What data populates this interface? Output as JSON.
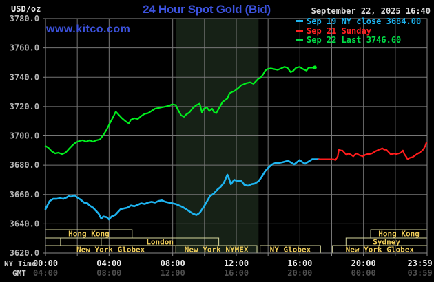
{
  "header": {
    "units_label": "USD/oz",
    "title": "24 Hour Spot Gold (Bid)",
    "datetime": "September 22, 2025 16:40",
    "watermark": "www.kitco.com",
    "legend": [
      {
        "label": "Sep 19 NY close 3684.00",
        "color": "#1eb4f0"
      },
      {
        "label": "Sep 21 Sunday",
        "color": "#ff2222"
      },
      {
        "label": "Sep 22 Last 3746.60",
        "color": "#00dc46"
      }
    ]
  },
  "axes": {
    "ny_time_label": "NY Time",
    "gmt_label": "GMT",
    "y_ticks": [
      {
        "v": 3780,
        "label": "3780.0"
      },
      {
        "v": 3760,
        "label": "3760.0"
      },
      {
        "v": 3740,
        "label": "3740.0"
      },
      {
        "v": 3720,
        "label": "3720.0"
      },
      {
        "v": 3700,
        "label": "3700.0"
      },
      {
        "v": 3680,
        "label": "3680.0"
      },
      {
        "v": 3660,
        "label": "3660.0"
      },
      {
        "v": 3640,
        "label": "3640.0"
      },
      {
        "v": 3620,
        "label": "3620.0"
      }
    ],
    "x_ticks": [
      {
        "h": 0,
        "ny": "00:00",
        "gmt": "04:00"
      },
      {
        "h": 4,
        "ny": "04:00",
        "gmt": "08:00"
      },
      {
        "h": 8,
        "ny": "08:00",
        "gmt": "12:00"
      },
      {
        "h": 12,
        "ny": "12:00",
        "gmt": "16:00"
      },
      {
        "h": 16,
        "ny": "16:00",
        "gmt": "20:00"
      },
      {
        "h": 20,
        "ny": "20:00",
        "gmt": "00:00"
      },
      {
        "h": 23.55,
        "ny": "23:59",
        "gmt": "03:59"
      }
    ]
  },
  "sessions": {
    "rows": [
      {
        "boxes": [
          {
            "start": 0,
            "end": 5.45,
            "label": "Hong Kong"
          },
          {
            "start": 20.45,
            "end": 24,
            "label": "Hong Kong"
          }
        ]
      },
      {
        "boxes": [
          {
            "start": 0,
            "end": 0.95,
            "label": ""
          },
          {
            "start": 0.95,
            "end": 3.5,
            "label": ""
          },
          {
            "start": 3.5,
            "end": 10.9,
            "label": "London"
          },
          {
            "start": 18.9,
            "end": 24,
            "label": "Sydney"
          }
        ]
      },
      {
        "boxes": [
          {
            "start": 0,
            "end": 8.2,
            "label": "New York Globex"
          },
          {
            "start": 8.2,
            "end": 13.3,
            "label": "New York NYMEX"
          },
          {
            "start": 13.5,
            "end": 17.3,
            "label": "NY Globex"
          },
          {
            "start": 18.05,
            "end": 24,
            "label": "New York Globex"
          }
        ]
      }
    ]
  },
  "colors": {
    "grid": "#767676",
    "border": "#8a8a8a",
    "band": "#162116",
    "session_border": "#d6d69c",
    "session_text": "#efcd5a",
    "y_label_text": "#b6b6b6",
    "ny_time_text": "#ededed",
    "gmt_text": "#4e4e4e"
  },
  "chart_data": {
    "type": "line",
    "title": "24 Hour Spot Gold (Bid)",
    "xlabel": "NY Time (hours 00:00 - 23:59)",
    "ylabel": "USD/oz",
    "xlim": [
      0,
      24
    ],
    "ylim": [
      3620,
      3780
    ],
    "grid": true,
    "legend_position": "top-right",
    "x_gridline_hours": [
      0,
      2,
      4,
      6,
      8,
      10,
      12,
      14,
      16,
      18,
      20,
      22,
      24
    ],
    "y_gridline_values": [
      3620,
      3640,
      3660,
      3680,
      3700,
      3720,
      3740,
      3760,
      3780
    ],
    "highlight_band_hours": [
      8.2,
      13.4
    ],
    "series": [
      {
        "name": "Sep 19 NY close 3684.00",
        "color": "#1eb4f0",
        "width": 2.6,
        "end_dot": false,
        "points": [
          [
            0,
            3650
          ],
          [
            0.26,
            3655.5
          ],
          [
            0.48,
            3657
          ],
          [
            0.69,
            3657
          ],
          [
            0.91,
            3657.5
          ],
          [
            1.13,
            3657
          ],
          [
            1.34,
            3658
          ],
          [
            1.47,
            3659
          ],
          [
            1.6,
            3658.5
          ],
          [
            1.82,
            3659.5
          ],
          [
            1.99,
            3658
          ],
          [
            2.21,
            3656.5
          ],
          [
            2.43,
            3654.5
          ],
          [
            2.64,
            3654
          ],
          [
            2.77,
            3652.5
          ],
          [
            2.99,
            3651
          ],
          [
            3.21,
            3648.5
          ],
          [
            3.34,
            3647
          ],
          [
            3.51,
            3643.5
          ],
          [
            3.64,
            3645
          ],
          [
            3.86,
            3644.5
          ],
          [
            3.99,
            3643
          ],
          [
            4.16,
            3645
          ],
          [
            4.38,
            3646
          ],
          [
            4.51,
            3647.5
          ],
          [
            4.72,
            3650
          ],
          [
            4.94,
            3650.5
          ],
          [
            5.16,
            3651
          ],
          [
            5.37,
            3652.5
          ],
          [
            5.59,
            3652
          ],
          [
            5.81,
            3653
          ],
          [
            6.02,
            3654
          ],
          [
            6.24,
            3653.5
          ],
          [
            6.45,
            3654.5
          ],
          [
            6.67,
            3655
          ],
          [
            6.89,
            3654.5
          ],
          [
            7.1,
            3655.5
          ],
          [
            7.32,
            3656
          ],
          [
            7.54,
            3655
          ],
          [
            7.75,
            3654.5
          ],
          [
            7.97,
            3654
          ],
          [
            8.19,
            3653.5
          ],
          [
            8.4,
            3652.5
          ],
          [
            8.62,
            3651.5
          ],
          [
            8.84,
            3650
          ],
          [
            9.05,
            3648.5
          ],
          [
            9.27,
            3647
          ],
          [
            9.49,
            3646
          ],
          [
            9.7,
            3647.5
          ],
          [
            9.92,
            3651
          ],
          [
            10.14,
            3655
          ],
          [
            10.35,
            3659
          ],
          [
            10.57,
            3660.5
          ],
          [
            10.7,
            3662
          ],
          [
            10.83,
            3663.5
          ],
          [
            11,
            3665
          ],
          [
            11.22,
            3668
          ],
          [
            11.44,
            3673.5
          ],
          [
            11.57,
            3670
          ],
          [
            11.66,
            3667
          ],
          [
            11.87,
            3670
          ],
          [
            12.09,
            3669
          ],
          [
            12.3,
            3669.5
          ],
          [
            12.52,
            3666.5
          ],
          [
            12.74,
            3666
          ],
          [
            12.95,
            3667
          ],
          [
            13.17,
            3667.5
          ],
          [
            13.39,
            3669
          ],
          [
            13.6,
            3672
          ],
          [
            13.82,
            3676
          ],
          [
            14.04,
            3678.5
          ],
          [
            14.25,
            3680.5
          ],
          [
            14.47,
            3681.5
          ],
          [
            14.69,
            3681.5
          ],
          [
            14.91,
            3682
          ],
          [
            15.25,
            3683
          ],
          [
            15.42,
            3682
          ],
          [
            15.64,
            3680.5
          ],
          [
            15.81,
            3682
          ],
          [
            15.99,
            3683.5
          ],
          [
            16.16,
            3682
          ],
          [
            16.33,
            3681
          ],
          [
            16.55,
            3682.5
          ],
          [
            16.77,
            3684
          ],
          [
            17.2,
            3684
          ]
        ]
      },
      {
        "name": "Sep 21 Sunday",
        "color": "#ff1c1c",
        "width": 2.2,
        "end_dot": false,
        "points": [
          [
            17.2,
            3684
          ],
          [
            18.1,
            3684
          ],
          [
            18.24,
            3683.5
          ],
          [
            18.38,
            3686
          ],
          [
            18.45,
            3690.5
          ],
          [
            18.58,
            3690
          ],
          [
            18.67,
            3690
          ],
          [
            18.8,
            3688.5
          ],
          [
            18.93,
            3687
          ],
          [
            19.06,
            3688
          ],
          [
            19.23,
            3687
          ],
          [
            19.36,
            3686
          ],
          [
            19.49,
            3687.5
          ],
          [
            19.58,
            3688
          ],
          [
            19.71,
            3687
          ],
          [
            19.84,
            3686.5
          ],
          [
            19.97,
            3686
          ],
          [
            20.1,
            3687
          ],
          [
            20.23,
            3687.5
          ],
          [
            20.36,
            3687.5
          ],
          [
            20.53,
            3688
          ],
          [
            20.75,
            3689.5
          ],
          [
            20.96,
            3690.5
          ],
          [
            21.09,
            3691
          ],
          [
            21.18,
            3691.5
          ],
          [
            21.31,
            3690.5
          ],
          [
            21.44,
            3690.5
          ],
          [
            21.57,
            3689
          ],
          [
            21.7,
            3687.5
          ],
          [
            21.83,
            3687.5
          ],
          [
            21.92,
            3688
          ],
          [
            22.05,
            3687.5
          ],
          [
            22.22,
            3688
          ],
          [
            22.35,
            3688.5
          ],
          [
            22.48,
            3690
          ],
          [
            22.57,
            3687.5
          ],
          [
            22.7,
            3685.5
          ],
          [
            22.78,
            3684
          ],
          [
            22.91,
            3685
          ],
          [
            23.09,
            3685.5
          ],
          [
            23.22,
            3686.5
          ],
          [
            23.35,
            3687.5
          ],
          [
            23.52,
            3688.5
          ],
          [
            23.65,
            3689.5
          ],
          [
            23.78,
            3691
          ],
          [
            23.9,
            3693.5
          ],
          [
            23.96,
            3695.5
          ]
        ]
      },
      {
        "name": "Sep 22 Last 3746.60",
        "color": "#00f01e",
        "width": 2.2,
        "end_dot": true,
        "points": [
          [
            0,
            3693
          ],
          [
            0.17,
            3692
          ],
          [
            0.39,
            3689.5
          ],
          [
            0.61,
            3688
          ],
          [
            0.82,
            3688.5
          ],
          [
            1.04,
            3687.5
          ],
          [
            1.26,
            3688.5
          ],
          [
            1.47,
            3691
          ],
          [
            1.69,
            3693.5
          ],
          [
            1.91,
            3695.5
          ],
          [
            2.12,
            3696.5
          ],
          [
            2.34,
            3697
          ],
          [
            2.56,
            3696
          ],
          [
            2.77,
            3697
          ],
          [
            2.99,
            3696
          ],
          [
            3.21,
            3697
          ],
          [
            3.42,
            3697.5
          ],
          [
            3.64,
            3700.5
          ],
          [
            3.86,
            3704.5
          ],
          [
            4.07,
            3709
          ],
          [
            4.29,
            3713.5
          ],
          [
            4.42,
            3716.5
          ],
          [
            4.59,
            3714.5
          ],
          [
            4.81,
            3712
          ],
          [
            5.03,
            3710
          ],
          [
            5.24,
            3708.5
          ],
          [
            5.37,
            3711
          ],
          [
            5.59,
            3712
          ],
          [
            5.81,
            3711.5
          ],
          [
            6.02,
            3713.5
          ],
          [
            6.24,
            3715
          ],
          [
            6.45,
            3715.5
          ],
          [
            6.67,
            3717
          ],
          [
            6.89,
            3718.5
          ],
          [
            7.1,
            3719
          ],
          [
            7.32,
            3719.5
          ],
          [
            7.54,
            3720
          ],
          [
            7.75,
            3720.5
          ],
          [
            7.97,
            3721.5
          ],
          [
            8.19,
            3721
          ],
          [
            8.32,
            3718
          ],
          [
            8.53,
            3714
          ],
          [
            8.71,
            3713
          ],
          [
            8.84,
            3714.5
          ],
          [
            9.05,
            3716
          ],
          [
            9.27,
            3719
          ],
          [
            9.49,
            3721
          ],
          [
            9.7,
            3722
          ],
          [
            9.84,
            3716
          ],
          [
            9.97,
            3718.5
          ],
          [
            10.14,
            3719.5
          ],
          [
            10.31,
            3717
          ],
          [
            10.48,
            3718.5
          ],
          [
            10.61,
            3716
          ],
          [
            10.74,
            3715.5
          ],
          [
            10.87,
            3718
          ],
          [
            11,
            3720.5
          ],
          [
            11.13,
            3723
          ],
          [
            11.31,
            3724.5
          ],
          [
            11.44,
            3725.5
          ],
          [
            11.57,
            3729
          ],
          [
            11.74,
            3730
          ],
          [
            11.87,
            3730.5
          ],
          [
            12,
            3731.5
          ],
          [
            12.17,
            3733
          ],
          [
            12.3,
            3734.5
          ],
          [
            12.43,
            3735
          ],
          [
            12.65,
            3736
          ],
          [
            12.87,
            3736.5
          ],
          [
            13.08,
            3735.5
          ],
          [
            13.26,
            3737.5
          ],
          [
            13.39,
            3739
          ],
          [
            13.52,
            3739.5
          ],
          [
            13.69,
            3742
          ],
          [
            13.82,
            3744.5
          ],
          [
            13.95,
            3745.5
          ],
          [
            14.17,
            3746
          ],
          [
            14.38,
            3745.5
          ],
          [
            14.6,
            3745
          ],
          [
            14.82,
            3746
          ],
          [
            15.03,
            3747
          ],
          [
            15.21,
            3746.5
          ],
          [
            15.42,
            3743.5
          ],
          [
            15.55,
            3744
          ],
          [
            15.77,
            3746.5
          ],
          [
            15.99,
            3747
          ],
          [
            16.2,
            3745.5
          ],
          [
            16.42,
            3744.5
          ],
          [
            16.55,
            3746.5
          ],
          [
            16.77,
            3746.5
          ],
          [
            16.94,
            3746.6
          ]
        ]
      }
    ]
  }
}
